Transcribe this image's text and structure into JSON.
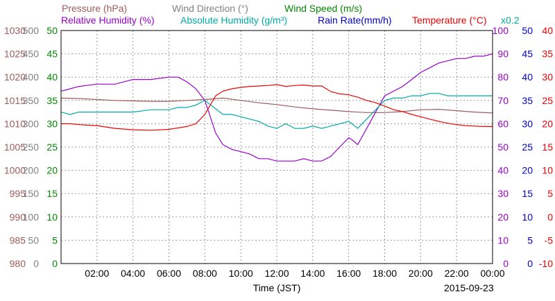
{
  "chart_data": {
    "type": "line",
    "date_label": "2015-09-23",
    "xlabel": "Time (JST)",
    "x_ticks": [
      "02:00",
      "04:00",
      "06:00",
      "08:00",
      "10:00",
      "12:00",
      "14:00",
      "16:00",
      "18:00",
      "20:00",
      "22:00",
      "00:00"
    ],
    "x_range": [
      0,
      24
    ],
    "grid": true,
    "legend": [
      {
        "key": "pressure",
        "text": "Pressure (hPa)",
        "color": "#a05a5a"
      },
      {
        "key": "wind_dir",
        "text": "Wind Direction (°)",
        "color": "#808080"
      },
      {
        "key": "wind_speed",
        "text": "Wind Speed (m/s)",
        "color": "#008800"
      },
      {
        "key": "rh",
        "text": "Relative Humidity (%)",
        "color": "#9900cc"
      },
      {
        "key": "ah",
        "text": "Absolute Humidity (g/m³)",
        "color": "#00aaaa"
      },
      {
        "key": "rain",
        "text": "Rain Rate(mm/h)",
        "color": "#0000cc"
      },
      {
        "key": "temp",
        "text": "Temperature (°C)",
        "color": "#ee0000"
      },
      {
        "key": "scale",
        "text": "x0.2",
        "color": "#00aaaa"
      }
    ],
    "axes": [
      {
        "key": "pressure",
        "color": "#a05a5a",
        "side": "left",
        "ticks": [
          "1030",
          "1025",
          "1020",
          "1015",
          "1010",
          "1005",
          "1000",
          "995",
          "990",
          "985",
          "980"
        ]
      },
      {
        "key": "wind_dir",
        "color": "#808080",
        "side": "left",
        "ticks": [
          "500",
          "450",
          "400",
          "350",
          "300",
          "250",
          "200",
          "150",
          "100",
          "50",
          "0"
        ]
      },
      {
        "key": "wind_speed",
        "color": "#008800",
        "side": "left",
        "ticks": [
          "50",
          "45",
          "40",
          "35",
          "30",
          "25",
          "20",
          "15",
          "10",
          "5",
          "0"
        ]
      },
      {
        "key": "rh",
        "color": "#9900cc",
        "side": "right",
        "ticks": [
          "100",
          "90",
          "80",
          "70",
          "60",
          "50",
          "40",
          "30",
          "20",
          "10",
          "0"
        ]
      },
      {
        "key": "rain",
        "color": "#0000cc",
        "side": "right",
        "ticks": [
          "50",
          "45",
          "40",
          "35",
          "30",
          "25",
          "20",
          "15",
          "10",
          "5",
          "0"
        ]
      },
      {
        "key": "temp",
        "color": "#ee0000",
        "side": "right",
        "ticks": [
          "40",
          "35",
          "30",
          "25",
          "20",
          "15",
          "10",
          "5",
          "0",
          "-5",
          "-10"
        ]
      }
    ],
    "series": [
      {
        "name": "Pressure (hPa)",
        "color": "#a05a5a",
        "ylim": [
          980,
          1030
        ],
        "x": [
          0,
          1,
          2,
          3,
          4,
          5,
          6,
          7,
          8,
          9,
          10,
          11,
          12,
          13,
          14,
          15,
          16,
          17,
          18,
          19,
          20,
          21,
          22,
          23,
          24
        ],
        "y": [
          1015.5,
          1015.4,
          1015.2,
          1015.0,
          1014.9,
          1014.8,
          1014.8,
          1015.0,
          1015.2,
          1015.5,
          1015.0,
          1014.5,
          1014.1,
          1013.6,
          1013.2,
          1012.9,
          1012.6,
          1012.4,
          1012.4,
          1012.6,
          1013.0,
          1013.1,
          1012.8,
          1012.5,
          1012.3
        ]
      },
      {
        "name": "Relative Humidity (%)",
        "color": "#9900cc",
        "ylim": [
          0,
          100
        ],
        "x": [
          0,
          0.5,
          1,
          2,
          3,
          4,
          5,
          6,
          6.5,
          7,
          7.5,
          8,
          8.3,
          8.6,
          9,
          9.5,
          10,
          10.5,
          11,
          11.5,
          12,
          12.5,
          13,
          13.5,
          14,
          14.5,
          15,
          15.5,
          16,
          16.2,
          16.5,
          17,
          17.5,
          18,
          18.5,
          19,
          19.5,
          20,
          20.5,
          21,
          21.5,
          22,
          22.5,
          23,
          23.5,
          24
        ],
        "y": [
          74,
          75,
          76,
          77,
          77,
          79,
          79,
          80,
          80,
          78,
          75,
          70,
          63,
          56,
          51,
          49,
          48,
          47,
          45,
          45,
          44,
          44,
          44,
          45,
          44,
          44,
          46,
          50,
          54,
          53,
          51,
          58,
          65,
          72,
          74,
          76,
          79,
          82,
          84,
          86,
          87,
          88,
          88,
          89,
          89,
          90
        ]
      },
      {
        "name": "Absolute Humidity (g/m³) x0.2",
        "color": "#00aaaa",
        "ylim": [
          0,
          100
        ],
        "x": [
          0,
          0.5,
          1,
          2,
          3,
          4,
          5,
          6,
          6.5,
          7,
          7.5,
          8,
          8.5,
          9,
          9.5,
          10,
          10.5,
          11,
          11.5,
          12,
          12.5,
          13,
          13.5,
          14,
          14.5,
          15,
          15.5,
          16,
          16.5,
          17,
          17.5,
          18,
          18.5,
          19,
          19.5,
          20,
          20.5,
          21,
          21.5,
          22,
          22.5,
          23,
          23.5,
          24
        ],
        "y": [
          65,
          64,
          65,
          65,
          65,
          65,
          66,
          66,
          67,
          67,
          68,
          70,
          67,
          64,
          64,
          63,
          62,
          61,
          59,
          58,
          60,
          58,
          58,
          59,
          58,
          59,
          60,
          61,
          58,
          62,
          66,
          70,
          71,
          71,
          72,
          72,
          73,
          73,
          72,
          72,
          72,
          72,
          72,
          72
        ]
      },
      {
        "name": "Temperature (°C)",
        "color": "#ee0000",
        "ylim": [
          -10,
          40
        ],
        "x": [
          0,
          0.5,
          1,
          2,
          3,
          4,
          5,
          6,
          7,
          7.5,
          8,
          8.3,
          8.6,
          9,
          9.5,
          10,
          10.5,
          11,
          11.5,
          12,
          12.5,
          13,
          13.5,
          14,
          14.5,
          15,
          15.5,
          16,
          16.5,
          17,
          17.5,
          18,
          18.5,
          19,
          19.5,
          20,
          20.5,
          21,
          21.5,
          22,
          22.5,
          23,
          23.5,
          24
        ],
        "y": [
          20,
          20,
          19.8,
          19.6,
          19,
          18.7,
          18.6,
          18.8,
          19.4,
          20,
          22,
          24,
          26,
          27,
          27.5,
          27.8,
          28,
          28.1,
          28.2,
          28.4,
          28.0,
          28.2,
          28.3,
          28.1,
          28.1,
          26.9,
          26.4,
          26.2,
          25.7,
          25.0,
          24.5,
          23.8,
          23.0,
          22.6,
          22.0,
          21.5,
          21.0,
          20.5,
          20.1,
          19.8,
          19.6,
          19.5,
          19.4,
          19.4
        ]
      }
    ]
  }
}
